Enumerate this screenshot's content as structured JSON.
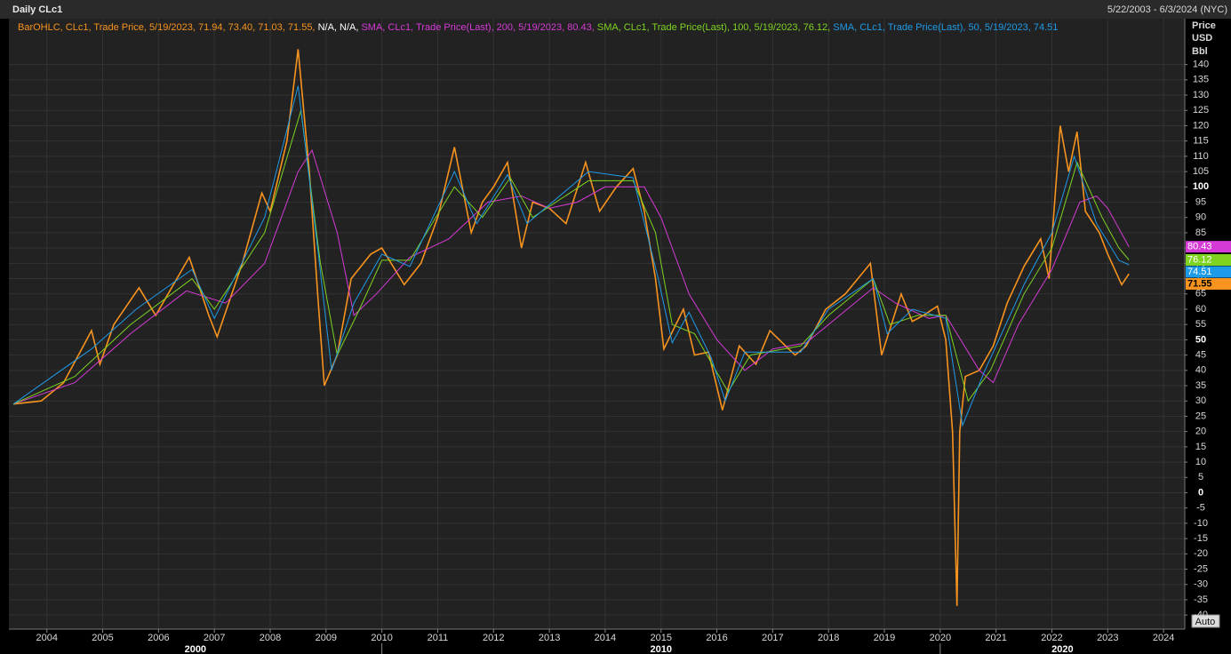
{
  "header": {
    "title": "Daily CLc1",
    "range": "5/22/2003 - 6/3/2024 (NYC)"
  },
  "chart_data": {
    "type": "line",
    "na_text": "N/A, N/A,",
    "ylabel_lines": [
      "Price",
      "USD",
      "Bbl"
    ],
    "button": "Auto",
    "xlim": [
      2003.32,
      2024.38
    ],
    "xticks": [
      2004,
      2005,
      2006,
      2007,
      2008,
      2009,
      2010,
      2011,
      2012,
      2013,
      2014,
      2015,
      2016,
      2017,
      2018,
      2019,
      2020,
      2021,
      2022,
      2023,
      2024
    ],
    "decades": [
      2000,
      2010,
      2020
    ],
    "ylim": [
      -44.6,
      155
    ],
    "yticks": [
      -40,
      -35,
      -30,
      -25,
      -20,
      -15,
      -10,
      -5,
      0,
      5,
      10,
      15,
      20,
      25,
      30,
      35,
      40,
      45,
      50,
      55,
      60,
      65,
      70,
      75,
      80,
      85,
      90,
      95,
      100,
      105,
      110,
      115,
      120,
      125,
      130,
      135,
      140
    ],
    "major_tick_step": 50,
    "grid": true,
    "series": [
      {
        "name": "BarOHLC, CLc1, Trade Price, 5/19/2023, 71.94, 73.40, 71.03, 71.55,",
        "color": "#f7931e",
        "last_value": 71.55,
        "x": [
          2003.4,
          2003.9,
          2004.3,
          2004.8,
          2004.95,
          2005.2,
          2005.65,
          2005.95,
          2006.55,
          2006.9,
          2007.05,
          2007.5,
          2007.85,
          2008.0,
          2008.3,
          2008.5,
          2008.7,
          2008.85,
          2008.97,
          2009.2,
          2009.45,
          2009.8,
          2010.0,
          2010.4,
          2010.7,
          2011.0,
          2011.3,
          2011.6,
          2011.8,
          2012.0,
          2012.25,
          2012.5,
          2012.7,
          2013.0,
          2013.3,
          2013.65,
          2013.9,
          2014.2,
          2014.5,
          2014.7,
          2014.9,
          2015.05,
          2015.4,
          2015.6,
          2015.85,
          2016.1,
          2016.4,
          2016.7,
          2016.95,
          2017.4,
          2017.6,
          2017.95,
          2018.3,
          2018.75,
          2018.95,
          2019.3,
          2019.5,
          2019.7,
          2019.95,
          2020.1,
          2020.22,
          2020.3,
          2020.35,
          2020.45,
          2020.7,
          2020.95,
          2021.2,
          2021.5,
          2021.8,
          2021.95,
          2022.15,
          2022.3,
          2022.45,
          2022.6,
          2022.85,
          2023.0,
          2023.25,
          2023.38
        ],
        "values": [
          29,
          30,
          36,
          53,
          42,
          55,
          67,
          58,
          77,
          58,
          51,
          75,
          98,
          92,
          115,
          145,
          105,
          65,
          35,
          45,
          70,
          78,
          80,
          68,
          75,
          90,
          113,
          85,
          95,
          100,
          108,
          80,
          95,
          93,
          88,
          108,
          92,
          100,
          106,
          92,
          70,
          47,
          60,
          45,
          46,
          27,
          48,
          42,
          53,
          45,
          48,
          60,
          65,
          75,
          45,
          65,
          56,
          58,
          61,
          50,
          20,
          -37,
          20,
          38,
          40,
          48,
          62,
          74,
          83,
          70,
          120,
          105,
          118,
          92,
          85,
          78,
          68,
          71.55
        ]
      },
      {
        "name": "SMA, CLc1, Trade Price(Last),  200,  5/19/2023, 80.43,",
        "color": "#d63ad6",
        "last_value": 80.43,
        "x": [
          2003.4,
          2004.5,
          2005.5,
          2006.5,
          2007.2,
          2007.9,
          2008.5,
          2008.75,
          2009.2,
          2009.5,
          2009.9,
          2010.5,
          2011.2,
          2011.9,
          2012.5,
          2013.0,
          2013.5,
          2014.0,
          2014.7,
          2015.0,
          2015.5,
          2016.0,
          2016.5,
          2017.0,
          2017.6,
          2018.0,
          2018.8,
          2019.2,
          2019.8,
          2020.1,
          2020.7,
          2020.95,
          2021.4,
          2022.0,
          2022.5,
          2022.8,
          2023.0,
          2023.38
        ],
        "values": [
          29,
          36,
          52,
          66,
          62,
          75,
          105,
          112,
          85,
          58,
          65,
          77,
          83,
          95,
          97,
          93,
          95,
          100,
          100,
          90,
          65,
          50,
          40,
          47,
          49,
          55,
          67,
          62,
          57,
          58,
          40,
          36,
          55,
          73,
          95,
          97,
          93,
          80.43
        ]
      },
      {
        "name": "SMA, CLc1, Trade Price(Last),  100,  5/19/2023, 76.12,",
        "color": "#7ed321",
        "last_value": 76.12,
        "x": [
          2003.4,
          2004.5,
          2005.5,
          2006.6,
          2007.0,
          2007.9,
          2008.55,
          2008.9,
          2009.2,
          2009.6,
          2010.0,
          2010.5,
          2011.3,
          2011.8,
          2012.3,
          2012.7,
          2013.7,
          2014.5,
          2014.9,
          2015.2,
          2015.6,
          2016.2,
          2016.6,
          2017.5,
          2018.0,
          2018.8,
          2019.1,
          2019.6,
          2020.1,
          2020.5,
          2020.9,
          2021.5,
          2022.0,
          2022.45,
          2022.9,
          2023.2,
          2023.38
        ],
        "values": [
          29,
          38,
          55,
          70,
          60,
          85,
          125,
          75,
          45,
          60,
          76,
          76,
          100,
          90,
          103,
          90,
          102,
          102,
          85,
          55,
          52,
          33,
          45,
          48,
          58,
          70,
          55,
          58,
          58,
          30,
          40,
          65,
          80,
          108,
          90,
          80,
          76.12
        ]
      },
      {
        "name": "SMA, CLc1, Trade Price(Last),  50,  5/19/2023, 74.51",
        "color": "#1e9be8",
        "last_value": 74.51,
        "x": [
          2003.4,
          2004.8,
          2005.6,
          2006.6,
          2007.0,
          2007.9,
          2008.5,
          2008.85,
          2009.1,
          2009.5,
          2010.0,
          2010.5,
          2011.3,
          2011.7,
          2012.25,
          2012.6,
          2013.7,
          2014.5,
          2014.95,
          2015.2,
          2015.5,
          2015.9,
          2016.15,
          2016.5,
          2017.5,
          2018.0,
          2018.8,
          2019.05,
          2019.5,
          2020.1,
          2020.4,
          2020.8,
          2021.5,
          2022.0,
          2022.4,
          2022.8,
          2023.2,
          2023.38
        ],
        "values": [
          29,
          47,
          60,
          73,
          57,
          90,
          133,
          80,
          40,
          62,
          78,
          74,
          105,
          88,
          104,
          88,
          105,
          103,
          70,
          49,
          59,
          44,
          30,
          46,
          46,
          60,
          70,
          52,
          60,
          57,
          22,
          40,
          68,
          85,
          110,
          88,
          76,
          74.51
        ]
      }
    ]
  }
}
